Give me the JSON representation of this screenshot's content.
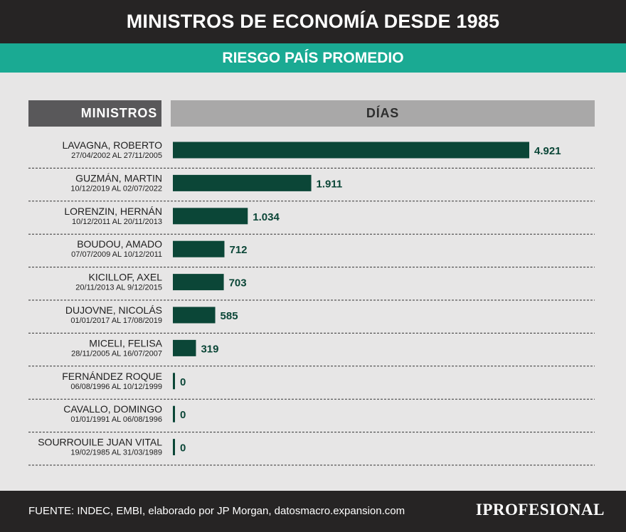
{
  "title": "MINISTROS DE ECONOMÍA DESDE 1985",
  "subtitle": "RIESGO PAÍS PROMEDIO",
  "headers": {
    "ministros": "MINISTROS",
    "dias": "DÍAS"
  },
  "colors": {
    "bar": "#0b4637",
    "value_text": "#0b4637",
    "accent": "#1aaa93",
    "dark": "#262424"
  },
  "chart_data": {
    "type": "bar",
    "orientation": "horizontal",
    "title": "MINISTROS DE ECONOMÍA DESDE 1985",
    "subtitle": "RIESGO PAÍS PROMEDIO",
    "xlabel": "DÍAS",
    "ylabel": "MINISTROS",
    "xlim": [
      0,
      4921
    ],
    "categories": [
      "LAVAGNA, ROBERTO",
      "GUZMÁN, MARTIN",
      "LORENZIN, HERNÁN",
      "BOUDOU, AMADO",
      "KICILLOF, AXEL",
      "DUJOVNE, NICOLÁS",
      "MICELI, FELISA",
      "FERNÁNDEZ ROQUE",
      "CAVALLO, DOMINGO",
      "SOURROUILE JUAN VITAL"
    ],
    "periods": [
      "27/04/2002 AL 27/11/2005",
      "10/12/2019 AL 02/07/2022",
      "10/12/2011 AL 20/11/2013",
      "07/07/2009 AL 10/12/2011",
      "20/11/2013 AL 9/12/2015",
      "01/01/2017 AL 17/08/2019",
      "28/11/2005 AL 16/07/2007",
      "06/08/1996 AL 10/12/1999",
      "01/01/1991 AL 06/08/1996",
      "19/02/1985 AL 31/03/1989"
    ],
    "values": [
      4921,
      1911,
      1034,
      712,
      703,
      585,
      319,
      0,
      0,
      0
    ],
    "value_labels": [
      "4.921",
      "1.911",
      "1.034",
      "712",
      "703",
      "585",
      "319",
      "0",
      "0",
      "0"
    ]
  },
  "footer": {
    "source": "FUENTE: INDEC, EMBI, elaborado por JP Morgan, datosmacro.expansion.com",
    "logo": "IPROFESIONAL"
  }
}
